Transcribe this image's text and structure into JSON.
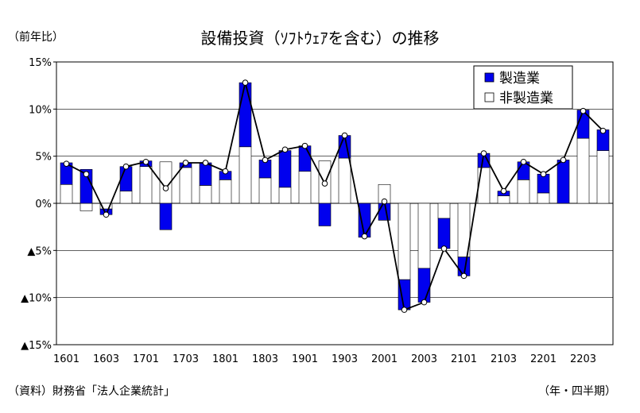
{
  "header": {
    "unit": "（前年比）",
    "title": "設備投資（ｿﾌﾄｳｪｱを含む）の推移"
  },
  "footer": {
    "source": "（資料）財務省「法人企業統計」",
    "x_note": "（年・四半期）"
  },
  "colors": {
    "manufacturing": "#0000ee",
    "non_manufacturing": "#ffffff",
    "line": "#000000",
    "grid": "#000000"
  },
  "chart_data": {
    "type": "bar",
    "stacked": true,
    "x_tick_labels": [
      "1601",
      "1603",
      "1701",
      "1703",
      "1801",
      "1803",
      "1901",
      "1903",
      "2001",
      "2003",
      "2101",
      "2103",
      "2201",
      "2203"
    ],
    "categories": [
      "1601",
      "1602",
      "1603",
      "1604",
      "1701",
      "1702",
      "1703",
      "1704",
      "1801",
      "1802",
      "1803",
      "1804",
      "1901",
      "1902",
      "1903",
      "1904",
      "2001",
      "2002",
      "2003",
      "2004",
      "2101",
      "2102",
      "2103",
      "2104",
      "2201",
      "2202",
      "2203",
      "2204"
    ],
    "series": [
      {
        "name": "製造業",
        "kind": "bar",
        "values": [
          2.3,
          3.6,
          -0.6,
          2.6,
          0.6,
          -2.8,
          0.5,
          2.4,
          0.9,
          6.8,
          1.9,
          3.9,
          2.7,
          -2.4,
          2.4,
          -3.6,
          -1.8,
          -3.2,
          -3.6,
          -3.2,
          -2.0,
          1.5,
          0.5,
          1.9,
          2.0,
          4.6,
          3.0,
          2.2
        ]
      },
      {
        "name": "非製造業",
        "kind": "bar",
        "values": [
          2.0,
          -0.8,
          -0.6,
          1.3,
          3.9,
          4.4,
          3.8,
          1.9,
          2.5,
          6.0,
          2.7,
          1.7,
          3.4,
          4.5,
          4.8,
          0.0,
          2.0,
          -8.1,
          -6.9,
          -1.6,
          -5.7,
          3.8,
          0.8,
          2.5,
          1.1,
          0.0,
          6.9,
          5.6
        ]
      },
      {
        "kind": "line",
        "values": [
          4.2,
          3.1,
          -1.2,
          3.9,
          4.4,
          1.6,
          4.3,
          4.3,
          3.4,
          12.8,
          4.6,
          5.7,
          6.1,
          2.1,
          7.2,
          -3.5,
          0.2,
          -11.3,
          -10.5,
          -4.8,
          -7.7,
          5.3,
          1.3,
          4.4,
          3.1,
          4.6,
          9.8,
          7.7
        ]
      }
    ],
    "ylim": [
      -15,
      15
    ],
    "y_ticks": [
      15,
      10,
      5,
      0,
      -5,
      -10,
      -15
    ],
    "y_tick_labels": [
      "15%",
      "10%",
      "5%",
      "0%",
      "▲5%",
      "▲10%",
      "▲15%"
    ],
    "legend_position": "top-right",
    "grid": true
  }
}
